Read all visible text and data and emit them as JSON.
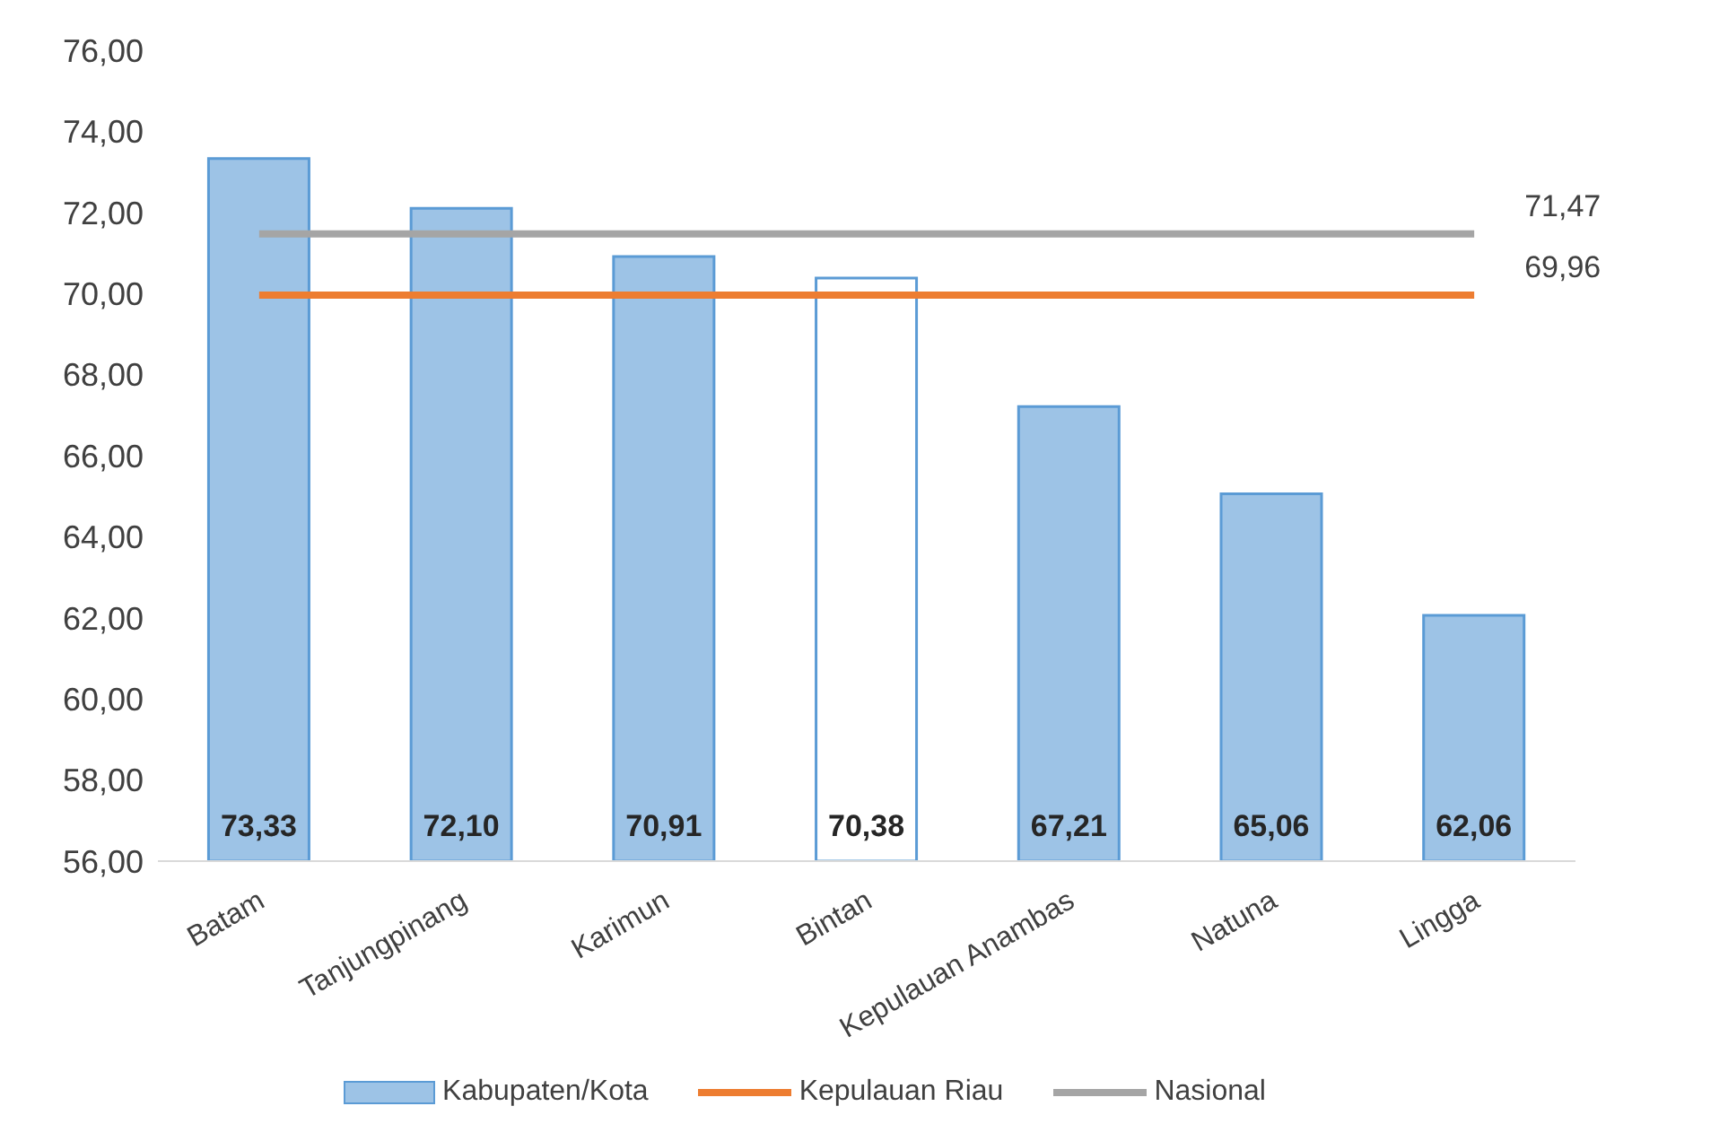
{
  "chart_data": {
    "type": "bar",
    "categories": [
      "Batam",
      "Tanjungpinang",
      "Karimun",
      "Bintan",
      "Kepulauan Anambas",
      "Natuna",
      "Lingga"
    ],
    "series": [
      {
        "name": "Kabupaten/Kota",
        "color": "#9dc3e6",
        "colors": [
          "#9dc3e6",
          "#9dc3e6",
          "#9dc3e6",
          "#ffffff",
          "#9dc3e6",
          "#9dc3e6",
          "#9dc3e6"
        ],
        "values": [
          73.33,
          72.1,
          70.91,
          70.38,
          67.21,
          65.06,
          62.06
        ],
        "value_labels": [
          "73,33",
          "72,10",
          "70,91",
          "70,38",
          "67,21",
          "65,06",
          "62,06"
        ]
      },
      {
        "name": "Kepulauan Riau",
        "type": "line",
        "color": "#ed7d31",
        "values": [
          69.96,
          69.96,
          69.96,
          69.96,
          69.96,
          69.96,
          69.96
        ],
        "value_labels": [
          null,
          null,
          null,
          null,
          null,
          null,
          "69,96"
        ]
      },
      {
        "name": "Nasional",
        "type": "line",
        "color": "#a5a5a5",
        "values": [
          71.47,
          71.47,
          71.47,
          71.47,
          71.47,
          71.47,
          71.47
        ],
        "value_labels": [
          null,
          null,
          null,
          null,
          null,
          null,
          "71,47"
        ]
      }
    ],
    "ylim": [
      56,
      76
    ],
    "yticks": [
      {
        "value": 56,
        "label": "56,00"
      },
      {
        "value": 58,
        "label": "58,00"
      },
      {
        "value": 60,
        "label": "60,00"
      },
      {
        "value": 62,
        "label": "62,00"
      },
      {
        "value": 64,
        "label": "64,00"
      },
      {
        "value": 66,
        "label": "66,00"
      },
      {
        "value": 68,
        "label": "68,00"
      },
      {
        "value": 70,
        "label": "70,00"
      },
      {
        "value": 72,
        "label": "72,00"
      },
      {
        "value": 74,
        "label": "74,00"
      },
      {
        "value": 76,
        "label": "76,00"
      }
    ],
    "legend": "bottom",
    "grid": false
  }
}
